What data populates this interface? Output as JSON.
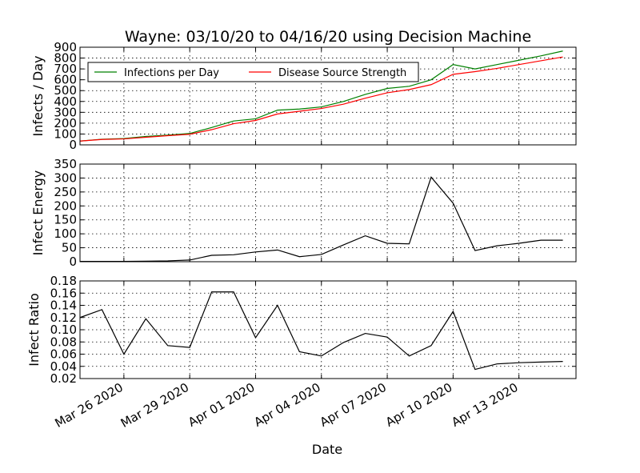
{
  "chart_data": {
    "title": "Wayne: 03/10/20 to 04/16/20 using Decision Machine",
    "xlabel": "Date",
    "x_tick_labels": [
      "Mar 26 2020",
      "Mar 29 2020",
      "Apr 01 2020",
      "Apr 04 2020",
      "Apr 07 2020",
      "Apr 10 2020",
      "Apr 13 2020"
    ],
    "x_tick_days": [
      2,
      5,
      8,
      11,
      14,
      17,
      20
    ],
    "x_range_days": [
      0,
      22.6
    ],
    "x_days": [
      0,
      1,
      2,
      3,
      4,
      5,
      6,
      7,
      8,
      9,
      10,
      11,
      12,
      13,
      14,
      15,
      16,
      17,
      18,
      19,
      20,
      21,
      22
    ],
    "panels": [
      {
        "type": "line",
        "ylabel": "Infects / Day",
        "ylim": [
          0,
          900
        ],
        "yticks": [
          0,
          100,
          200,
          300,
          400,
          500,
          600,
          700,
          800,
          900
        ],
        "grid": true,
        "legend": "upper-left",
        "series": [
          {
            "name": "Infections per Day",
            "color": "#008000",
            "values": [
              35,
              52,
              58,
              78,
              90,
              105,
              160,
              220,
              240,
              320,
              330,
              350,
              400,
              465,
              520,
              540,
              600,
              740,
              700,
              740,
              780,
              820,
              865
            ]
          },
          {
            "name": "Disease Source Strength",
            "color": "#ff0000",
            "values": [
              35,
              50,
              55,
              70,
              85,
              98,
              140,
              195,
              225,
              285,
              310,
              335,
              375,
              430,
              480,
              510,
              555,
              650,
              675,
              705,
              740,
              775,
              810
            ]
          }
        ]
      },
      {
        "type": "line",
        "ylabel": "Infect Energy",
        "ylim": [
          0,
          350
        ],
        "yticks": [
          0,
          50,
          100,
          150,
          200,
          250,
          300,
          350
        ],
        "grid": true,
        "series": [
          {
            "name": "Infect Energy",
            "color": "#000000",
            "values": [
              1,
              1,
              1,
              2,
              3,
              6,
              23,
              25,
              35,
              42,
              18,
              26,
              60,
              93,
              66,
              64,
              303,
              210,
              40,
              57,
              66,
              77,
              77
            ]
          }
        ]
      },
      {
        "type": "line",
        "ylabel": "Infect Ratio",
        "ylim": [
          0.02,
          0.18
        ],
        "yticks": [
          0.02,
          0.04,
          0.06,
          0.08,
          0.1,
          0.12,
          0.14,
          0.16,
          0.18
        ],
        "ytick_labels": [
          "0.02",
          "0.04",
          "0.06",
          "0.08",
          "0.10",
          "0.12",
          "0.14",
          "0.16",
          "0.18"
        ],
        "grid": true,
        "series": [
          {
            "name": "Infect Ratio",
            "color": "#000000",
            "values": [
              0.12,
              0.133,
              0.06,
              0.118,
              0.074,
              0.071,
              0.162,
              0.162,
              0.087,
              0.14,
              0.064,
              0.057,
              0.079,
              0.094,
              0.088,
              0.057,
              0.074,
              0.13,
              0.035,
              0.044,
              0.046,
              0.047,
              0.048
            ]
          }
        ]
      }
    ]
  }
}
